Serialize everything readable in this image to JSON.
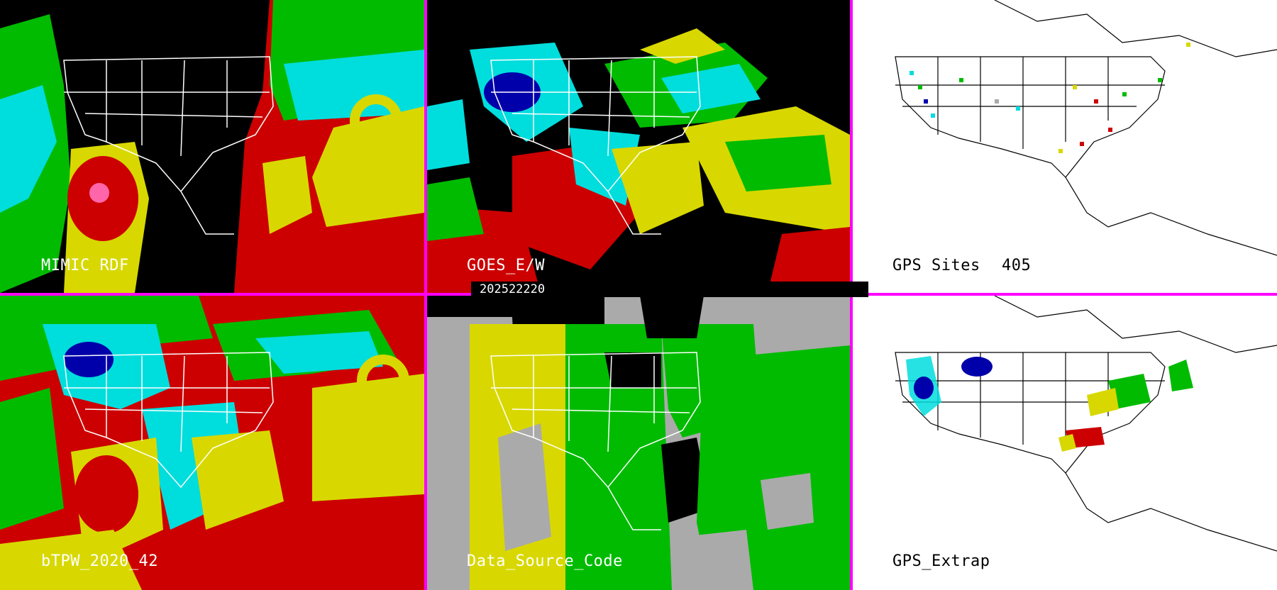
{
  "timestamp": "202522220",
  "panels": [
    {
      "id": "mimic",
      "label": "MIMIC RDF",
      "theme": "dark"
    },
    {
      "id": "goes",
      "label": "GOES_E/W",
      "theme": "dark"
    },
    {
      "id": "gps-sites",
      "label": "GPS Sites",
      "count": "405",
      "theme": "light"
    },
    {
      "id": "btpw",
      "label": "bTPW_2020_42",
      "theme": "dark"
    },
    {
      "id": "data-source",
      "label": "Data_Source_Code",
      "theme": "dark"
    },
    {
      "id": "gps-extrap",
      "label": "GPS_Extrap",
      "theme": "light"
    }
  ],
  "colors": {
    "divider": "#ff00ff",
    "red": "#cc0000",
    "yellow": "#d8d800",
    "green": "#00bb00",
    "cyan": "#00dddd",
    "blue": "#0000aa",
    "gray": "#aaaaaa",
    "black": "#000000",
    "white": "#ffffff"
  }
}
